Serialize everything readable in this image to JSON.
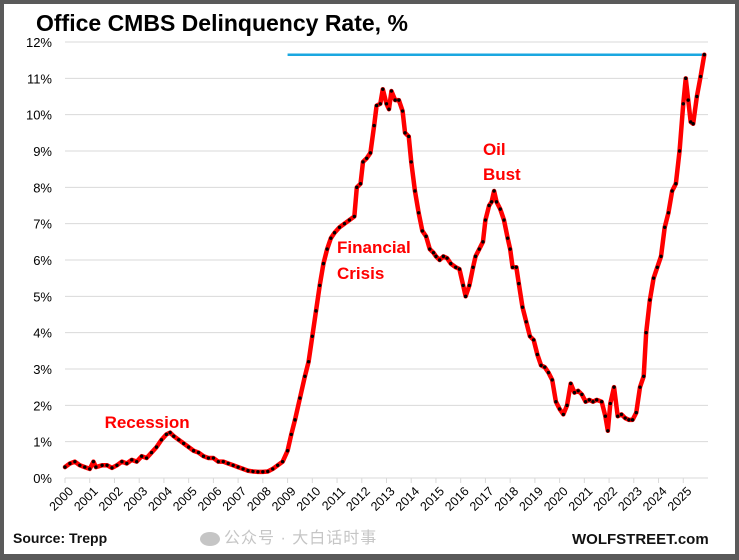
{
  "chart_data": {
    "type": "line",
    "title": "Office CMBS Delinquency Rate, %",
    "xlabel": "",
    "ylabel": "",
    "ylim": [
      0,
      12
    ],
    "xlim": [
      2000,
      2026
    ],
    "grid": true,
    "y_ticks": [
      "0%",
      "1%",
      "2%",
      "3%",
      "4%",
      "5%",
      "6%",
      "7%",
      "8%",
      "9%",
      "10%",
      "11%",
      "12%"
    ],
    "x_ticks": [
      "2000",
      "2001",
      "2002",
      "2003",
      "2004",
      "2005",
      "2006",
      "2007",
      "2008",
      "2009",
      "2010",
      "2011",
      "2012",
      "2013",
      "2014",
      "2015",
      "2016",
      "2017",
      "2018",
      "2019",
      "2020",
      "2021",
      "2022",
      "2023",
      "2024",
      "2025"
    ],
    "series": [
      {
        "name": "Office CMBS Delinquency Rate",
        "color": "#ff0000",
        "marker_color": "#000000",
        "points": [
          [
            2000.0,
            0.3
          ],
          [
            2000.2,
            0.4
          ],
          [
            2000.4,
            0.45
          ],
          [
            2000.6,
            0.35
          ],
          [
            2000.8,
            0.3
          ],
          [
            2001.0,
            0.25
          ],
          [
            2001.15,
            0.45
          ],
          [
            2001.25,
            0.3
          ],
          [
            2001.5,
            0.35
          ],
          [
            2001.7,
            0.35
          ],
          [
            2001.9,
            0.28
          ],
          [
            2002.1,
            0.35
          ],
          [
            2002.3,
            0.45
          ],
          [
            2002.5,
            0.4
          ],
          [
            2002.7,
            0.5
          ],
          [
            2002.9,
            0.45
          ],
          [
            2003.1,
            0.6
          ],
          [
            2003.3,
            0.55
          ],
          [
            2003.5,
            0.7
          ],
          [
            2003.7,
            0.85
          ],
          [
            2003.9,
            1.05
          ],
          [
            2004.1,
            1.2
          ],
          [
            2004.25,
            1.25
          ],
          [
            2004.4,
            1.15
          ],
          [
            2004.6,
            1.05
          ],
          [
            2004.8,
            0.95
          ],
          [
            2005.0,
            0.85
          ],
          [
            2005.2,
            0.75
          ],
          [
            2005.4,
            0.7
          ],
          [
            2005.6,
            0.6
          ],
          [
            2005.8,
            0.55
          ],
          [
            2006.0,
            0.55
          ],
          [
            2006.2,
            0.45
          ],
          [
            2006.4,
            0.45
          ],
          [
            2006.6,
            0.4
          ],
          [
            2006.8,
            0.35
          ],
          [
            2007.0,
            0.3
          ],
          [
            2007.2,
            0.25
          ],
          [
            2007.4,
            0.2
          ],
          [
            2007.6,
            0.18
          ],
          [
            2007.8,
            0.17
          ],
          [
            2008.0,
            0.17
          ],
          [
            2008.2,
            0.18
          ],
          [
            2008.4,
            0.25
          ],
          [
            2008.6,
            0.35
          ],
          [
            2008.8,
            0.45
          ],
          [
            2009.0,
            0.75
          ],
          [
            2009.15,
            1.2
          ],
          [
            2009.3,
            1.6
          ],
          [
            2009.5,
            2.2
          ],
          [
            2009.7,
            2.8
          ],
          [
            2009.85,
            3.2
          ],
          [
            2010.0,
            3.9
          ],
          [
            2010.15,
            4.6
          ],
          [
            2010.3,
            5.3
          ],
          [
            2010.45,
            5.9
          ],
          [
            2010.6,
            6.3
          ],
          [
            2010.75,
            6.6
          ],
          [
            2010.9,
            6.75
          ],
          [
            2011.1,
            6.9
          ],
          [
            2011.3,
            7.0
          ],
          [
            2011.5,
            7.1
          ],
          [
            2011.7,
            7.2
          ],
          [
            2011.8,
            8.0
          ],
          [
            2011.95,
            8.1
          ],
          [
            2012.05,
            8.7
          ],
          [
            2012.2,
            8.8
          ],
          [
            2012.35,
            8.95
          ],
          [
            2012.5,
            9.7
          ],
          [
            2012.6,
            10.25
          ],
          [
            2012.75,
            10.3
          ],
          [
            2012.85,
            10.7
          ],
          [
            2013.0,
            10.3
          ],
          [
            2013.1,
            10.15
          ],
          [
            2013.2,
            10.65
          ],
          [
            2013.35,
            10.4
          ],
          [
            2013.5,
            10.4
          ],
          [
            2013.65,
            10.1
          ],
          [
            2013.75,
            9.5
          ],
          [
            2013.9,
            9.4
          ],
          [
            2014.0,
            8.7
          ],
          [
            2014.15,
            7.9
          ],
          [
            2014.3,
            7.3
          ],
          [
            2014.45,
            6.8
          ],
          [
            2014.6,
            6.65
          ],
          [
            2014.75,
            6.3
          ],
          [
            2014.9,
            6.2
          ],
          [
            2015.0,
            6.1
          ],
          [
            2015.15,
            6.0
          ],
          [
            2015.3,
            6.1
          ],
          [
            2015.45,
            6.05
          ],
          [
            2015.6,
            5.9
          ],
          [
            2015.8,
            5.8
          ],
          [
            2015.95,
            5.75
          ],
          [
            2016.1,
            5.3
          ],
          [
            2016.2,
            5.0
          ],
          [
            2016.35,
            5.3
          ],
          [
            2016.5,
            5.8
          ],
          [
            2016.6,
            6.1
          ],
          [
            2016.75,
            6.3
          ],
          [
            2016.9,
            6.5
          ],
          [
            2017.0,
            7.1
          ],
          [
            2017.15,
            7.5
          ],
          [
            2017.25,
            7.6
          ],
          [
            2017.35,
            7.9
          ],
          [
            2017.45,
            7.6
          ],
          [
            2017.6,
            7.4
          ],
          [
            2017.75,
            7.1
          ],
          [
            2017.9,
            6.6
          ],
          [
            2018.0,
            6.3
          ],
          [
            2018.1,
            5.8
          ],
          [
            2018.25,
            5.8
          ],
          [
            2018.35,
            5.35
          ],
          [
            2018.5,
            4.7
          ],
          [
            2018.65,
            4.3
          ],
          [
            2018.8,
            3.9
          ],
          [
            2018.95,
            3.8
          ],
          [
            2019.1,
            3.4
          ],
          [
            2019.25,
            3.1
          ],
          [
            2019.4,
            3.05
          ],
          [
            2019.55,
            2.9
          ],
          [
            2019.7,
            2.7
          ],
          [
            2019.85,
            2.1
          ],
          [
            2020.0,
            1.9
          ],
          [
            2020.15,
            1.75
          ],
          [
            2020.3,
            2.0
          ],
          [
            2020.45,
            2.6
          ],
          [
            2020.6,
            2.35
          ],
          [
            2020.75,
            2.4
          ],
          [
            2020.9,
            2.3
          ],
          [
            2021.05,
            2.1
          ],
          [
            2021.2,
            2.15
          ],
          [
            2021.35,
            2.1
          ],
          [
            2021.5,
            2.15
          ],
          [
            2021.7,
            2.1
          ],
          [
            2021.85,
            1.7
          ],
          [
            2021.95,
            1.3
          ],
          [
            2022.05,
            2.05
          ],
          [
            2022.2,
            2.5
          ],
          [
            2022.35,
            1.7
          ],
          [
            2022.5,
            1.75
          ],
          [
            2022.65,
            1.65
          ],
          [
            2022.8,
            1.6
          ],
          [
            2022.95,
            1.6
          ],
          [
            2023.1,
            1.8
          ],
          [
            2023.25,
            2.5
          ],
          [
            2023.4,
            2.8
          ],
          [
            2023.5,
            4.0
          ],
          [
            2023.65,
            4.9
          ],
          [
            2023.8,
            5.5
          ],
          [
            2023.95,
            5.8
          ],
          [
            2024.1,
            6.1
          ],
          [
            2024.25,
            6.9
          ],
          [
            2024.4,
            7.3
          ],
          [
            2024.55,
            7.9
          ],
          [
            2024.7,
            8.1
          ],
          [
            2024.85,
            9.0
          ],
          [
            2025.0,
            10.3
          ],
          [
            2025.1,
            11.0
          ],
          [
            2025.2,
            10.4
          ],
          [
            2025.3,
            9.8
          ],
          [
            2025.4,
            9.75
          ],
          [
            2025.55,
            10.5
          ],
          [
            2025.7,
            11.05
          ],
          [
            2025.85,
            11.65
          ]
        ]
      },
      {
        "name": "Current level reference",
        "color": "#1aa7e0",
        "points": [
          [
            2009.0,
            11.65
          ],
          [
            2025.85,
            11.65
          ]
        ]
      }
    ],
    "annotations": [
      {
        "text": "Recession",
        "x": 2001.6,
        "y": 1.5
      },
      {
        "text": "Financial",
        "x": 2011.0,
        "y": 6.3
      },
      {
        "text": "Crisis",
        "x": 2011.0,
        "y": 5.6
      },
      {
        "text": "Oil",
        "x": 2016.9,
        "y": 9.0
      },
      {
        "text": "Bust",
        "x": 2016.9,
        "y": 8.3
      }
    ]
  },
  "footer": {
    "source": "Source: Trepp",
    "brand": "WOLFSTREET.com",
    "watermark": "公众号 · 大白话时事"
  }
}
